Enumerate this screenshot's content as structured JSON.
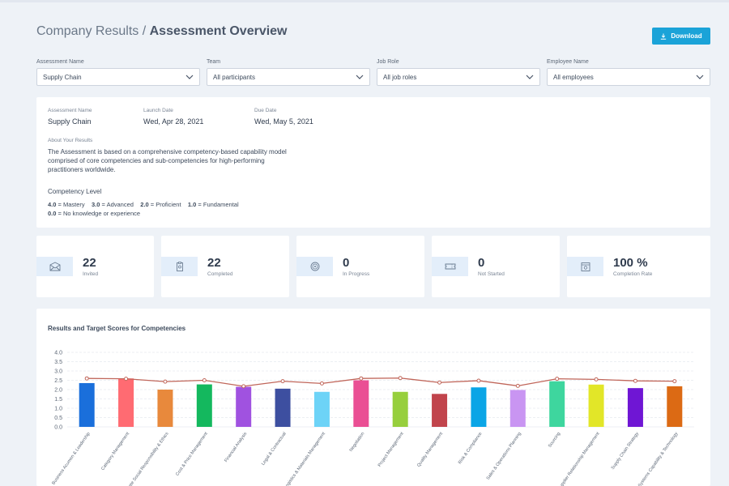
{
  "header": {
    "breadcrumb_root": "Company Results",
    "separator": " / ",
    "page_title": "Assessment Overview",
    "download_label": "Download"
  },
  "filters": [
    {
      "label": "Assessment Name",
      "value": "Supply Chain"
    },
    {
      "label": "Team",
      "value": "All participants"
    },
    {
      "label": "Job Role",
      "value": "All job roles"
    },
    {
      "label": "Employee Name",
      "value": "All employees"
    }
  ],
  "info": {
    "assessment_name_label": "Assessment Name",
    "assessment_name": "Supply Chain",
    "launch_date_label": "Launch Date",
    "launch_date": "Wed, Apr 28, 2021",
    "due_date_label": "Due Date",
    "due_date": "Wed, May 5, 2021",
    "about_label": "About Your Results",
    "about_text": "The Assessment is based on a comprehensive competency-based capability model comprised of core competencies and sub-competencies for high-performing practitioners worldwide.",
    "competency_label": "Competency Level",
    "levels": [
      {
        "value": "4.0",
        "text": " = Mastery"
      },
      {
        "value": "3.0",
        "text": " = Advanced"
      },
      {
        "value": "2.0",
        "text": " = Proficient"
      },
      {
        "value": "1.0",
        "text": " = Fundamental"
      },
      {
        "value": "0.0",
        "text": " = No knowledge or experience"
      }
    ]
  },
  "stats": [
    {
      "value": "22",
      "label": "Invited",
      "icon": "envelope-icon"
    },
    {
      "value": "22",
      "label": "Completed",
      "icon": "clipboard-icon"
    },
    {
      "value": "0",
      "label": "In Progress",
      "icon": "target-icon"
    },
    {
      "value": "0",
      "label": "Not Started",
      "icon": "ticket-icon"
    },
    {
      "value": "100 %",
      "label": "Completion Rate",
      "icon": "calendar-icon"
    }
  ],
  "colors": {
    "accent": "#1ba3d8",
    "target_line": "#c0665a"
  },
  "chart_data": {
    "type": "bar",
    "title": "Results and Target Scores for Competencies",
    "ylim": [
      0,
      4
    ],
    "yticks": [
      "0.0",
      "0.5",
      "1.0",
      "1.5",
      "2.0",
      "2.5",
      "3.0",
      "3.5",
      "4.0"
    ],
    "categories": [
      "Business Acumen & Leadership",
      "Category Management",
      "Corporate Social Responsibility & Ethics",
      "Cost & Price Management",
      "Financial Analysis",
      "Legal & Contractual",
      "Logistics & Materials Management",
      "Negotiation",
      "Project Management",
      "Quality Management",
      "Risk & Compliance",
      "Sales & Operations Planning",
      "Sourcing",
      "Supplier Relationship Management",
      "Supply Chain Strategy",
      "Systems Capability & Technology"
    ],
    "series": [
      {
        "values": [
          2.35,
          2.6,
          2.0,
          2.28,
          2.15,
          2.05,
          1.88,
          2.5,
          1.88,
          1.77,
          2.12,
          1.98,
          2.45,
          2.27,
          2.08,
          2.18
        ],
        "colors": [
          "#1a6fdb",
          "#ff6b72",
          "#e8893c",
          "#14b85e",
          "#a052e0",
          "#3d4fa0",
          "#6dd3f7",
          "#ea4f94",
          "#97cf3d",
          "#c1444c",
          "#0ba5e6",
          "#c995f2",
          "#3ed69e",
          "#e2e628",
          "#6f16d4",
          "#dc6a14"
        ]
      },
      {
        "values": [
          2.6,
          2.58,
          2.43,
          2.5,
          2.18,
          2.45,
          2.33,
          2.6,
          2.62,
          2.38,
          2.48,
          2.2,
          2.58,
          2.55,
          2.47,
          2.45
        ]
      }
    ]
  }
}
